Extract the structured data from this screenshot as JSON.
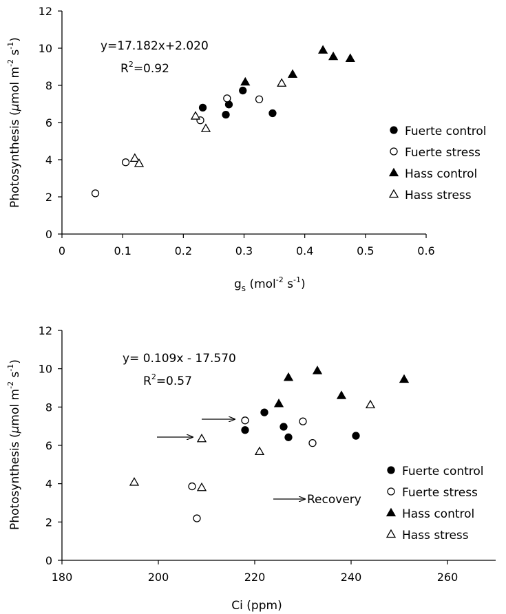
{
  "chart_data": [
    {
      "type": "scatter",
      "xlabel": "g",
      "xlabel_sub": "s",
      "xlabel_rest": " (mol",
      "xlabel_sup1": "-2",
      "xlabel_mid": " s",
      "xlabel_sup2": "-1",
      "xlabel_end": ")",
      "ylabel_main": "Photosynthesis  (",
      "ylabel_mu": "μ",
      "ylabel_mid": "mol m",
      "ylabel_sup1": "-2",
      "ylabel_s": " s",
      "ylabel_sup2": "-1",
      "ylabel_end": ")",
      "xlim": [
        0,
        0.6
      ],
      "ylim": [
        0,
        12
      ],
      "xticks": [
        "0",
        "0.1",
        "0.2",
        "0.3",
        "0.4",
        "0.5",
        "0.6"
      ],
      "yticks": [
        "0",
        "2",
        "4",
        "6",
        "8",
        "10",
        "12"
      ],
      "grid": false,
      "legend": "right",
      "equation": "y=17.182x+2.020",
      "r2_label": "R",
      "r2_sup": "2",
      "r2_value": "=0.92",
      "series": [
        {
          "name": "Fuerte control",
          "marker": "circle-filled",
          "points": [
            [
              0.232,
              6.8
            ],
            [
              0.27,
              6.42
            ],
            [
              0.275,
              6.97
            ],
            [
              0.298,
              7.72
            ],
            [
              0.347,
              6.5
            ]
          ]
        },
        {
          "name": "Fuerte stress",
          "marker": "circle-open",
          "points": [
            [
              0.055,
              2.19
            ],
            [
              0.105,
              3.86
            ],
            [
              0.228,
              6.12
            ],
            [
              0.272,
              7.3
            ],
            [
              0.325,
              7.25
            ]
          ]
        },
        {
          "name": "Hass control",
          "marker": "triangle-filled",
          "points": [
            [
              0.302,
              8.18
            ],
            [
              0.38,
              8.6
            ],
            [
              0.43,
              9.9
            ],
            [
              0.447,
              9.55
            ],
            [
              0.475,
              9.45
            ]
          ]
        },
        {
          "name": "Hass stress",
          "marker": "triangle-open",
          "points": [
            [
              0.12,
              4.08
            ],
            [
              0.127,
              3.8
            ],
            [
              0.22,
              6.35
            ],
            [
              0.237,
              5.68
            ],
            [
              0.362,
              8.12
            ]
          ]
        }
      ]
    },
    {
      "type": "scatter",
      "xlabel": "Ci (ppm)",
      "ylabel_main": "Photosynthesis  (",
      "ylabel_mu": "μ",
      "ylabel_mid": "mol m",
      "ylabel_sup1": "-2",
      "ylabel_s": " s",
      "ylabel_sup2": "-1",
      "ylabel_end": ")",
      "xlim": [
        180,
        270
      ],
      "ylim": [
        0,
        12
      ],
      "xticks": [
        "180",
        "200",
        "220",
        "240",
        "260"
      ],
      "yticks": [
        "0",
        "2",
        "4",
        "6",
        "8",
        "10",
        "12"
      ],
      "grid": false,
      "legend": "bottom-right",
      "equation": "y= 0.109x - 17.570",
      "r2_label": "R",
      "r2_sup": "2",
      "r2_value": "=0.57",
      "annotation": "Recovery",
      "series": [
        {
          "name": "Fuerte control",
          "marker": "circle-filled",
          "points": [
            [
              218,
              6.8
            ],
            [
              222,
              7.72
            ],
            [
              226,
              6.97
            ],
            [
              227,
              6.42
            ],
            [
              241,
              6.5
            ]
          ]
        },
        {
          "name": "Fuerte stress",
          "marker": "circle-open",
          "points": [
            [
              218,
              7.3
            ],
            [
              207,
              3.86
            ],
            [
              208,
              2.19
            ],
            [
              230,
              7.25
            ],
            [
              232,
              6.12
            ]
          ]
        },
        {
          "name": "Hass control",
          "marker": "triangle-filled",
          "points": [
            [
              225,
              8.18
            ],
            [
              227,
              9.55
            ],
            [
              233,
              9.9
            ],
            [
              238,
              8.6
            ],
            [
              251,
              9.45
            ]
          ]
        },
        {
          "name": "Hass stress",
          "marker": "triangle-open",
          "points": [
            [
              195,
              4.08
            ],
            [
              209,
              3.8
            ],
            [
              209,
              6.35
            ],
            [
              221,
              5.68
            ],
            [
              244,
              8.12
            ]
          ]
        }
      ]
    }
  ]
}
